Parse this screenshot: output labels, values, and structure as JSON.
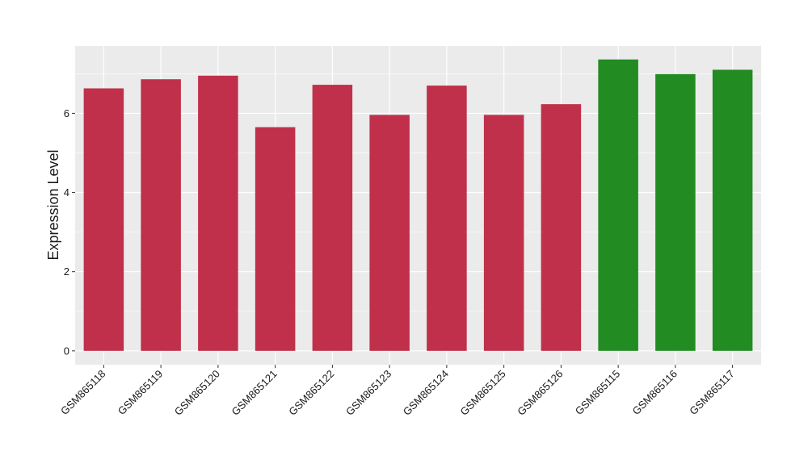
{
  "chart_data": {
    "type": "bar",
    "categories": [
      "GSM865118",
      "GSM865119",
      "GSM865120",
      "GSM865121",
      "GSM865122",
      "GSM865123",
      "GSM865124",
      "GSM865125",
      "GSM865126",
      "GSM865115",
      "GSM865116",
      "GSM865117"
    ],
    "values": [
      6.63,
      6.86,
      6.95,
      5.65,
      6.72,
      5.96,
      6.7,
      5.96,
      6.23,
      7.36,
      6.99,
      7.1
    ],
    "bar_colors": [
      "#c0304a",
      "#c0304a",
      "#c0304a",
      "#c0304a",
      "#c0304a",
      "#c0304a",
      "#c0304a",
      "#c0304a",
      "#c0304a",
      "#228b22",
      "#228b22",
      "#228b22"
    ],
    "title": "",
    "xlabel": "",
    "ylabel": "Expression Level",
    "ylim": [
      -0.35,
      7.7
    ],
    "yticks": [
      0,
      2,
      4,
      6
    ],
    "grid": true,
    "panel_background": "#ebebeb",
    "grid_color": "#ffffff"
  }
}
